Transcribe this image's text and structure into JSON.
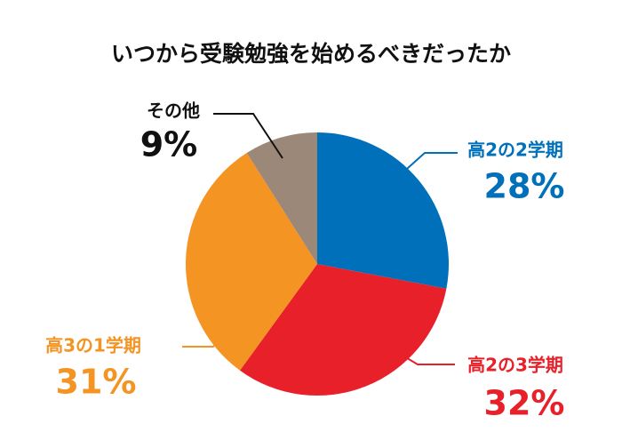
{
  "chart_data": {
    "type": "pie",
    "title": "いつから受験勉強を始めるべきだったか",
    "categories": [
      "高2の2学期",
      "高2の3学期",
      "高3の1学期",
      "その他"
    ],
    "values": [
      28,
      32,
      31,
      9
    ],
    "value_labels": [
      "28%",
      "32%",
      "31%",
      "9%"
    ],
    "colors": [
      "#0070bb",
      "#e8202a",
      "#f39423",
      "#9b8878"
    ]
  }
}
